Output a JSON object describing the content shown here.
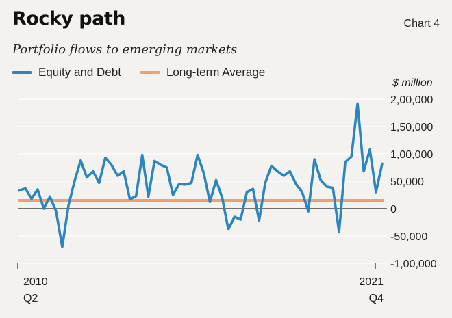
{
  "header": {
    "title": "Rocky path",
    "chart_number": "Chart 4",
    "subtitle": "Portfolio flows to emerging markets"
  },
  "colors": {
    "background": "#f4f2ef",
    "series_main": "#2b86c0",
    "series_avg": "#f0a070",
    "grid": "#ffffff",
    "axis": "#222222"
  },
  "chart_data": {
    "type": "line",
    "unit_label": "$ million",
    "x_start_label": [
      "2010",
      "Q2"
    ],
    "x_end_label": [
      "2021",
      "Q4"
    ],
    "yticks": [
      -100000,
      -50000,
      0,
      50000,
      100000,
      150000,
      200000
    ],
    "ytick_labels": [
      "-1,00,000",
      "-50,000",
      "0",
      "50,000",
      "1,00,000",
      "1,50,000",
      "2,00,000"
    ],
    "ylim": [
      -100000,
      200000
    ],
    "grid": true,
    "legend_position": "top-left",
    "series": [
      {
        "name": "Equity and Debt",
        "values": [
          33000,
          37000,
          18000,
          35000,
          0,
          22000,
          -5000,
          -70000,
          5000,
          50000,
          88000,
          57000,
          68000,
          47000,
          93000,
          80000,
          60000,
          68000,
          17000,
          23000,
          98000,
          22000,
          87000,
          80000,
          75000,
          25000,
          45000,
          44000,
          47000,
          98000,
          65000,
          12000,
          52000,
          20000,
          -38000,
          -15000,
          -20000,
          30000,
          36000,
          -22000,
          47000,
          78000,
          68000,
          60000,
          68000,
          45000,
          30000,
          -5000,
          90000,
          52000,
          40000,
          38000,
          -43000,
          85000,
          95000,
          192000,
          68000,
          108000,
          30000,
          82000
        ]
      },
      {
        "name": "Long-term Average",
        "values": [
          15000,
          15000
        ]
      }
    ]
  }
}
